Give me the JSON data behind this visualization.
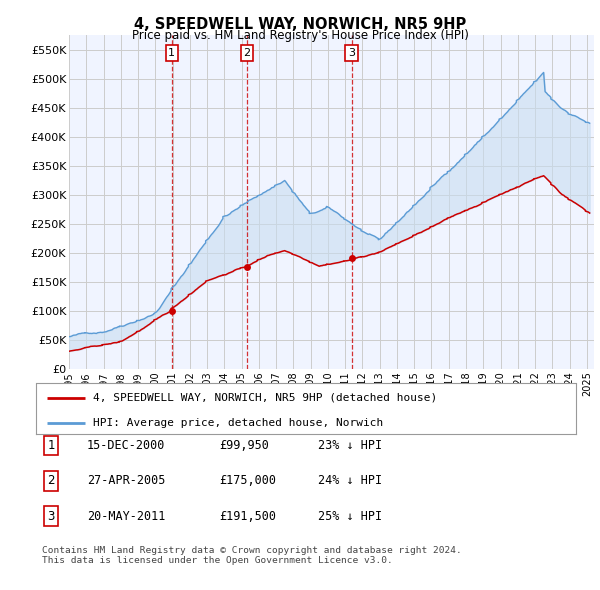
{
  "title": "4, SPEEDWELL WAY, NORWICH, NR5 9HP",
  "subtitle": "Price paid vs. HM Land Registry's House Price Index (HPI)",
  "background_color": "#ffffff",
  "plot_bg_color": "#f0f4ff",
  "grid_color": "#cccccc",
  "ylim": [
    0,
    575000
  ],
  "yticks": [
    0,
    50000,
    100000,
    150000,
    200000,
    250000,
    300000,
    350000,
    400000,
    450000,
    500000,
    550000
  ],
  "ytick_labels": [
    "£0",
    "£50K",
    "£100K",
    "£150K",
    "£200K",
    "£250K",
    "£300K",
    "£350K",
    "£400K",
    "£450K",
    "£500K",
    "£550K"
  ],
  "hpi_color": "#5b9bd5",
  "hpi_fill_color": "#c8ddf0",
  "price_color": "#cc0000",
  "marker_color": "#cc0000",
  "vline_color": "#cc0000",
  "sale_dates": [
    "2000-12-15",
    "2005-04-27",
    "2011-05-20"
  ],
  "sale_prices": [
    99950,
    175000,
    191500
  ],
  "sale_labels": [
    "1",
    "2",
    "3"
  ],
  "legend_price_label": "4, SPEEDWELL WAY, NORWICH, NR5 9HP (detached house)",
  "legend_hpi_label": "HPI: Average price, detached house, Norwich",
  "table_rows": [
    [
      "1",
      "15-DEC-2000",
      "£99,950",
      "23% ↓ HPI"
    ],
    [
      "2",
      "27-APR-2005",
      "£175,000",
      "24% ↓ HPI"
    ],
    [
      "3",
      "20-MAY-2011",
      "£191,500",
      "25% ↓ HPI"
    ]
  ],
  "footer": "Contains HM Land Registry data © Crown copyright and database right 2024.\nThis data is licensed under the Open Government Licence v3.0."
}
